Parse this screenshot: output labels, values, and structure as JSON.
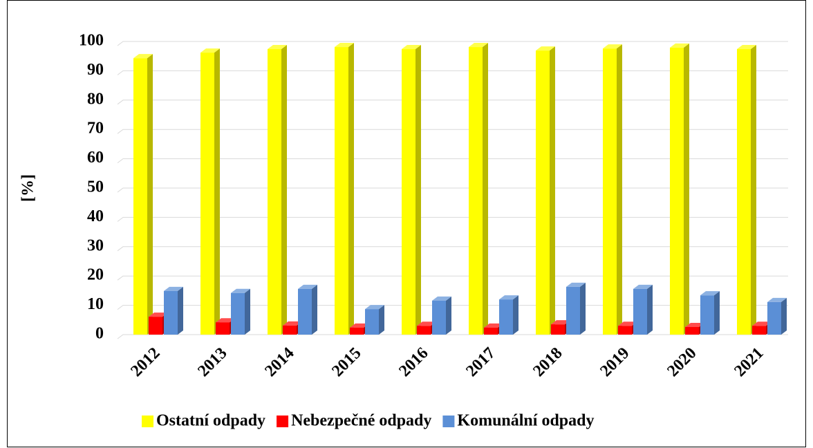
{
  "chart_data": {
    "type": "bar3d",
    "ylabel": "[%]",
    "categories": [
      "2012",
      "2013",
      "2014",
      "2015",
      "2016",
      "2017",
      "2018",
      "2019",
      "2020",
      "2021"
    ],
    "series": [
      {
        "name": "Ostatní odpady",
        "color": "#ffff00",
        "values": [
          94.3,
          96.2,
          97.4,
          98.1,
          97.4,
          98.1,
          96.9,
          97.6,
          97.9,
          97.4
        ]
      },
      {
        "name": "Nebezpečné odpady",
        "color": "#ff0000",
        "values": [
          6.1,
          4.2,
          3.1,
          2.4,
          3.0,
          2.4,
          3.5,
          3.0,
          2.6,
          3.0
        ]
      },
      {
        "name": "Komunální odpady",
        "color": "#5b8fd6",
        "values": [
          14.9,
          14.2,
          15.6,
          8.7,
          11.6,
          12.0,
          16.3,
          15.6,
          13.4,
          11.1
        ]
      }
    ],
    "ylim": [
      0,
      100
    ],
    "yticks": [
      0,
      10,
      20,
      30,
      40,
      50,
      60,
      70,
      80,
      90,
      100
    ],
    "grid": true,
    "legend": "bottom"
  }
}
